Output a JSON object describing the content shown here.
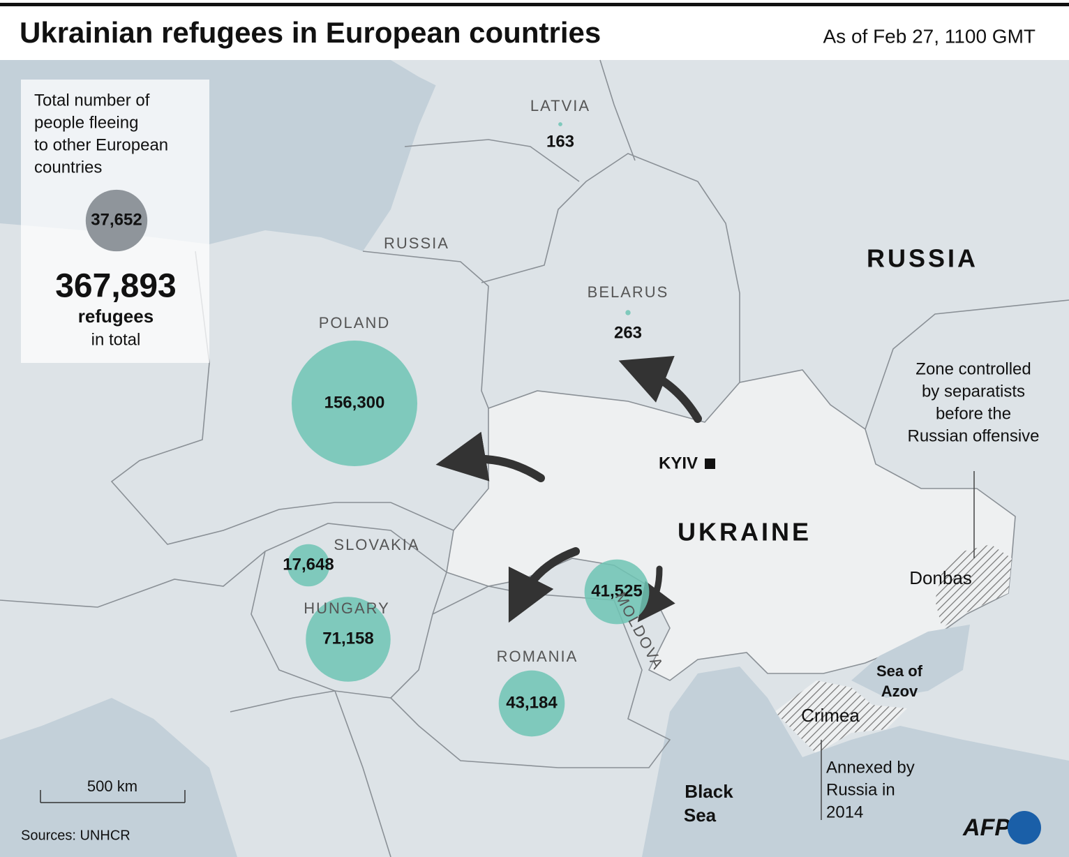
{
  "header": {
    "title": "Ukrainian refugees in European countries",
    "date": "As of Feb 27, 1100 GMT"
  },
  "legend": {
    "text": [
      "Total number of",
      "people fleeing",
      "to other European",
      "countries"
    ],
    "other": {
      "value": 37652,
      "value_label": "37,652"
    },
    "total_label": "367,893",
    "unit": "refugees",
    "suffix": "in total"
  },
  "countries": [
    {
      "name": "POLAND",
      "value": 156300,
      "value_label": "156,300"
    },
    {
      "name": "HUNGARY",
      "value": 71158,
      "value_label": "71,158"
    },
    {
      "name": "ROMANIA",
      "value": 43184,
      "value_label": "43,184"
    },
    {
      "name": null,
      "value": 41525,
      "value_label": "41,525"
    },
    {
      "name": "SLOVAKIA",
      "value": 17648,
      "value_label": "17,648"
    },
    {
      "name": "BELARUS",
      "value": 263,
      "value_label": "263"
    },
    {
      "name": "LATVIA",
      "value": 163,
      "value_label": "163"
    }
  ],
  "places": {
    "russia_small": "RUSSIA",
    "russia": "RUSSIA",
    "ukraine": "UKRAINE",
    "kyiv": "KYIV",
    "moldova": "MOLDOVA",
    "black_sea": [
      "Black",
      "Sea"
    ],
    "sea_of_azov": [
      "Sea of",
      "Azov"
    ],
    "crimea": "Crimea",
    "donbas": "Donbas"
  },
  "annotations": {
    "donbas": [
      "Zone controlled",
      "by separatists",
      "before the",
      "Russian offensive"
    ],
    "crimea": [
      "Annexed by",
      "Russia in",
      "2014"
    ]
  },
  "scale": "500 km",
  "source": "Sources: UNHCR",
  "logo": "AFP"
}
